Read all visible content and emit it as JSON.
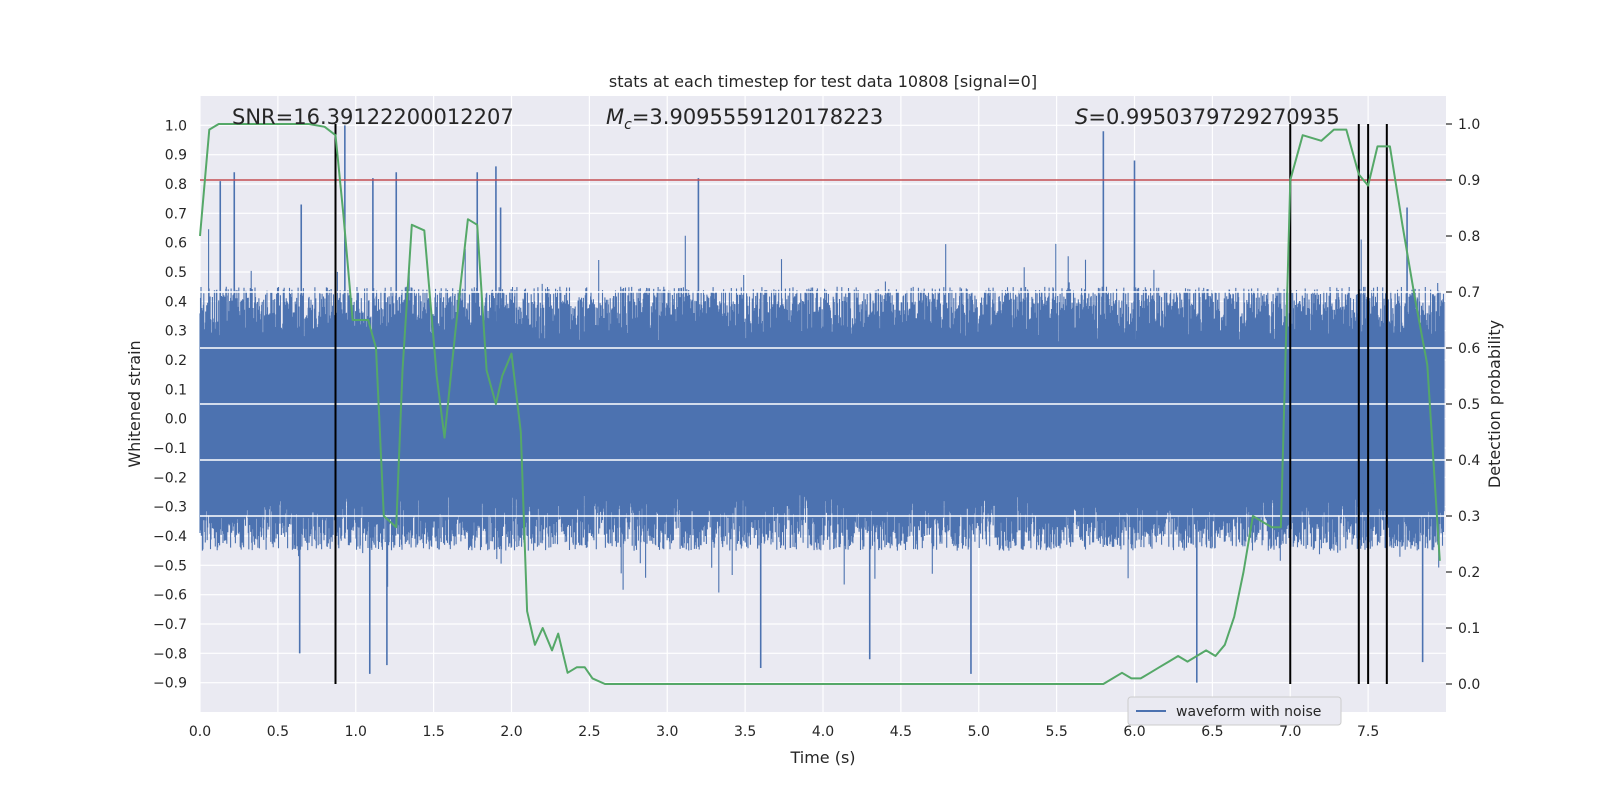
{
  "chart_data": {
    "type": "line",
    "title": "stats at each timestep for test data 10808 [signal=0]",
    "xlabel": "Time (s)",
    "ylabel": "Whitened strain",
    "y2label": "Detection probability",
    "xlim": [
      0.0,
      8.0
    ],
    "ylim": [
      -1.0,
      1.1
    ],
    "y2lim": [
      -0.05,
      1.05
    ],
    "x_ticks": [
      "0.0",
      "0.5",
      "1.0",
      "1.5",
      "2.0",
      "2.5",
      "3.0",
      "3.5",
      "4.0",
      "4.5",
      "5.0",
      "5.5",
      "6.0",
      "6.5",
      "7.0",
      "7.5"
    ],
    "y_ticks": [
      "1.0",
      "0.9",
      "0.8",
      "0.7",
      "0.6",
      "0.5",
      "0.4",
      "0.3",
      "0.2",
      "0.1",
      "0.0",
      "−0.1",
      "−0.2",
      "−0.3",
      "−0.4",
      "−0.5",
      "−0.6",
      "−0.7",
      "−0.8",
      "−0.9"
    ],
    "y2_ticks": [
      "1.0",
      "0.9",
      "0.8",
      "0.7",
      "0.6",
      "0.5",
      "0.4",
      "0.3",
      "0.2",
      "0.1",
      "0.0"
    ],
    "grid": true,
    "legend": {
      "position": "lower-right",
      "entries": [
        "waveform with noise"
      ]
    },
    "annotations": {
      "snr": "SNR=16.39122200012207",
      "mc_symbol": "M",
      "mc_sub": "c",
      "mc_value": "=3.9095559120178223",
      "s_symbol": "S",
      "s_value": "=0.9950379729270935"
    },
    "threshold": {
      "y2": 0.9,
      "color": "#c44e52"
    },
    "event_lines_x": [
      0.87,
      7.0,
      7.44,
      7.5,
      7.62
    ],
    "event_lines_color": "#000000",
    "waveform": {
      "name": "waveform with noise",
      "color": "#4c72b0",
      "typical_envelope": [
        -0.45,
        0.45
      ],
      "max": 1.0,
      "min": -0.9,
      "spikes": [
        {
          "x": 0.22,
          "y": 0.84
        },
        {
          "x": 0.13,
          "y": 0.81
        },
        {
          "x": 0.65,
          "y": 0.73
        },
        {
          "x": 0.93,
          "y": 1.0
        },
        {
          "x": 1.11,
          "y": 0.82
        },
        {
          "x": 1.26,
          "y": 0.84
        },
        {
          "x": 1.78,
          "y": 0.84
        },
        {
          "x": 1.9,
          "y": 0.86
        },
        {
          "x": 1.93,
          "y": 0.72
        },
        {
          "x": 3.2,
          "y": 0.82
        },
        {
          "x": 5.8,
          "y": 0.98
        },
        {
          "x": 6.0,
          "y": 0.88
        },
        {
          "x": 7.75,
          "y": 0.72
        },
        {
          "x": 0.64,
          "y": -0.8
        },
        {
          "x": 1.09,
          "y": -0.87
        },
        {
          "x": 1.2,
          "y": -0.84
        },
        {
          "x": 3.6,
          "y": -0.85
        },
        {
          "x": 4.3,
          "y": -0.82
        },
        {
          "x": 4.95,
          "y": -0.87
        },
        {
          "x": 6.4,
          "y": -0.9
        },
        {
          "x": 7.85,
          "y": -0.83
        }
      ]
    },
    "probability": {
      "color": "#55a868",
      "x": [
        0.0,
        0.06,
        0.12,
        0.2,
        0.3,
        0.4,
        0.5,
        0.6,
        0.7,
        0.8,
        0.87,
        0.92,
        0.98,
        1.02,
        1.08,
        1.13,
        1.18,
        1.26,
        1.3,
        1.36,
        1.44,
        1.52,
        1.57,
        1.64,
        1.72,
        1.78,
        1.84,
        1.9,
        1.94,
        2.0,
        2.06,
        2.1,
        2.15,
        2.2,
        2.26,
        2.3,
        2.36,
        2.42,
        2.47,
        2.52,
        2.6,
        2.8,
        3.0,
        3.2,
        3.4,
        3.6,
        3.8,
        4.0,
        4.2,
        4.4,
        4.6,
        4.8,
        5.0,
        5.2,
        5.4,
        5.6,
        5.8,
        5.86,
        5.92,
        5.98,
        6.04,
        6.1,
        6.16,
        6.22,
        6.28,
        6.34,
        6.4,
        6.46,
        6.52,
        6.58,
        6.64,
        6.7,
        6.76,
        6.82,
        6.88,
        6.94,
        7.0,
        7.08,
        7.2,
        7.28,
        7.36,
        7.44,
        7.5,
        7.56,
        7.64,
        7.72,
        7.8,
        7.88,
        7.96
      ],
      "y": [
        0.8,
        0.99,
        1.0,
        1.0,
        1.0,
        1.0,
        1.0,
        1.0,
        1.0,
        0.995,
        0.98,
        0.84,
        0.65,
        0.65,
        0.65,
        0.6,
        0.3,
        0.28,
        0.56,
        0.82,
        0.81,
        0.55,
        0.44,
        0.63,
        0.83,
        0.82,
        0.56,
        0.5,
        0.55,
        0.59,
        0.45,
        0.13,
        0.07,
        0.1,
        0.06,
        0.09,
        0.02,
        0.03,
        0.03,
        0.01,
        0.0,
        0.0,
        0.0,
        0.0,
        0.0,
        0.0,
        0.0,
        0.0,
        0.0,
        0.0,
        0.0,
        0.0,
        0.0,
        0.0,
        0.0,
        0.0,
        0.0,
        0.01,
        0.02,
        0.01,
        0.01,
        0.02,
        0.03,
        0.04,
        0.05,
        0.04,
        0.05,
        0.06,
        0.05,
        0.07,
        0.12,
        0.2,
        0.3,
        0.29,
        0.28,
        0.28,
        0.9,
        0.98,
        0.97,
        0.99,
        0.99,
        0.91,
        0.89,
        0.96,
        0.96,
        0.82,
        0.69,
        0.57,
        0.22
      ]
    }
  }
}
